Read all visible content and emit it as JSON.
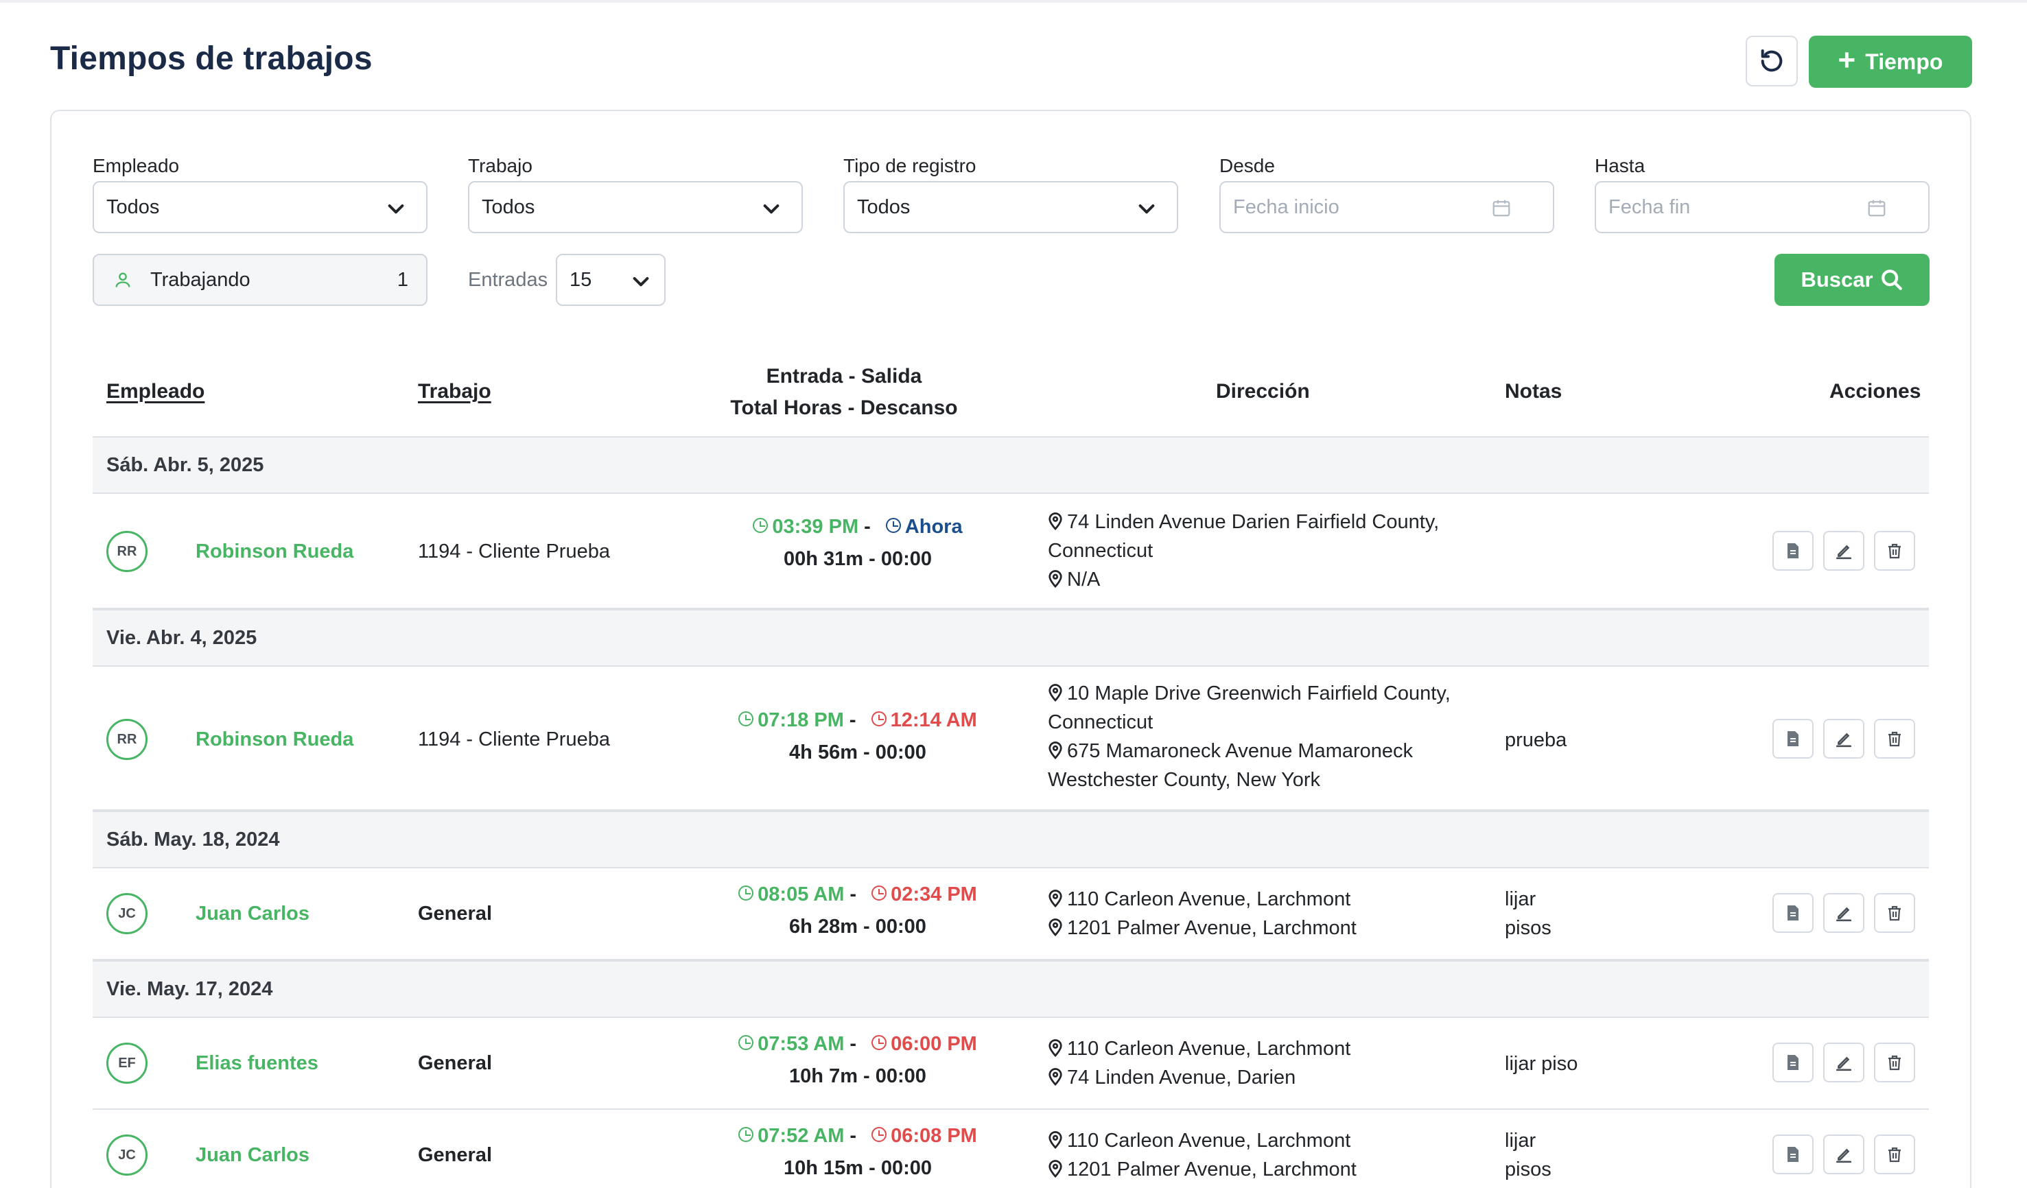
{
  "page": {
    "title": "Tiempos de trabajos",
    "add_button_label": "Tiempo"
  },
  "filters": {
    "employee": {
      "label": "Empleado",
      "value": "Todos"
    },
    "job": {
      "label": "Trabajo",
      "value": "Todos"
    },
    "record_type": {
      "label": "Tipo de registro",
      "value": "Todos"
    },
    "from": {
      "label": "Desde",
      "placeholder": "Fecha inicio"
    },
    "to": {
      "label": "Hasta",
      "placeholder": "Fecha fin"
    },
    "working": {
      "label": "Trabajando",
      "count": "1"
    },
    "entries": {
      "label": "Entradas",
      "value": "15"
    },
    "search_label": "Buscar"
  },
  "table": {
    "headers": {
      "employee": "Empleado",
      "job": "Trabajo",
      "times_line1": "Entrada - Salida",
      "times_line2": "Total Horas - Descanso",
      "address": "Dirección",
      "notes": "Notas",
      "actions": "Acciones"
    },
    "groups": [
      {
        "date": "Sáb. Abr. 5, 2025"
      },
      {
        "date": "Vie. Abr. 4, 2025"
      },
      {
        "date": "Sáb. May. 18, 2024"
      },
      {
        "date": "Vie. May. 17, 2024"
      }
    ],
    "rows": [
      {
        "initials": "RR",
        "name": "Robinson Rueda",
        "job": "1194 - Cliente Prueba",
        "in": "03:39 PM",
        "out": "Ahora",
        "total": "00h 31m - 00:00",
        "addr1": "74 Linden Avenue Darien Fairfield County, Connecticut",
        "addr2": "N/A",
        "notes": ""
      },
      {
        "initials": "RR",
        "name": "Robinson Rueda",
        "job": "1194 - Cliente Prueba",
        "in": "07:18 PM",
        "out": "12:14 AM",
        "total": "4h 56m - 00:00",
        "addr1": "10 Maple Drive Greenwich Fairfield County, Connecticut",
        "addr2": "675 Mamaroneck Avenue Mamaroneck Westchester County, New York",
        "notes": "prueba"
      },
      {
        "initials": "JC",
        "name": "Juan Carlos",
        "job": "General",
        "in": "08:05 AM",
        "out": "02:34 PM",
        "total": "6h 28m - 00:00",
        "addr1": "110 Carleon Avenue, Larchmont",
        "addr2": "1201 Palmer Avenue, Larchmont",
        "notes": "lijar\npisos"
      },
      {
        "initials": "EF",
        "name": "Elias fuentes",
        "job": "General",
        "in": "07:53 AM",
        "out": "06:00 PM",
        "total": "10h 7m - 00:00",
        "addr1": "110 Carleon Avenue, Larchmont",
        "addr2": "74 Linden Avenue, Darien",
        "notes": "lijar piso"
      },
      {
        "initials": "JC",
        "name": "Juan Carlos",
        "job": "General",
        "in": "07:52 AM",
        "out": "06:08 PM",
        "total": "10h 15m - 00:00",
        "addr1": "110 Carleon Avenue, Larchmont",
        "addr2": "1201 Palmer Avenue, Larchmont",
        "notes": "lijar\npisos"
      }
    ]
  },
  "colors": {
    "accent_green": "#47b563",
    "clock_out_red": "#e14b4b",
    "now_blue": "#1b4e8c",
    "title_navy": "#1b2a47"
  }
}
